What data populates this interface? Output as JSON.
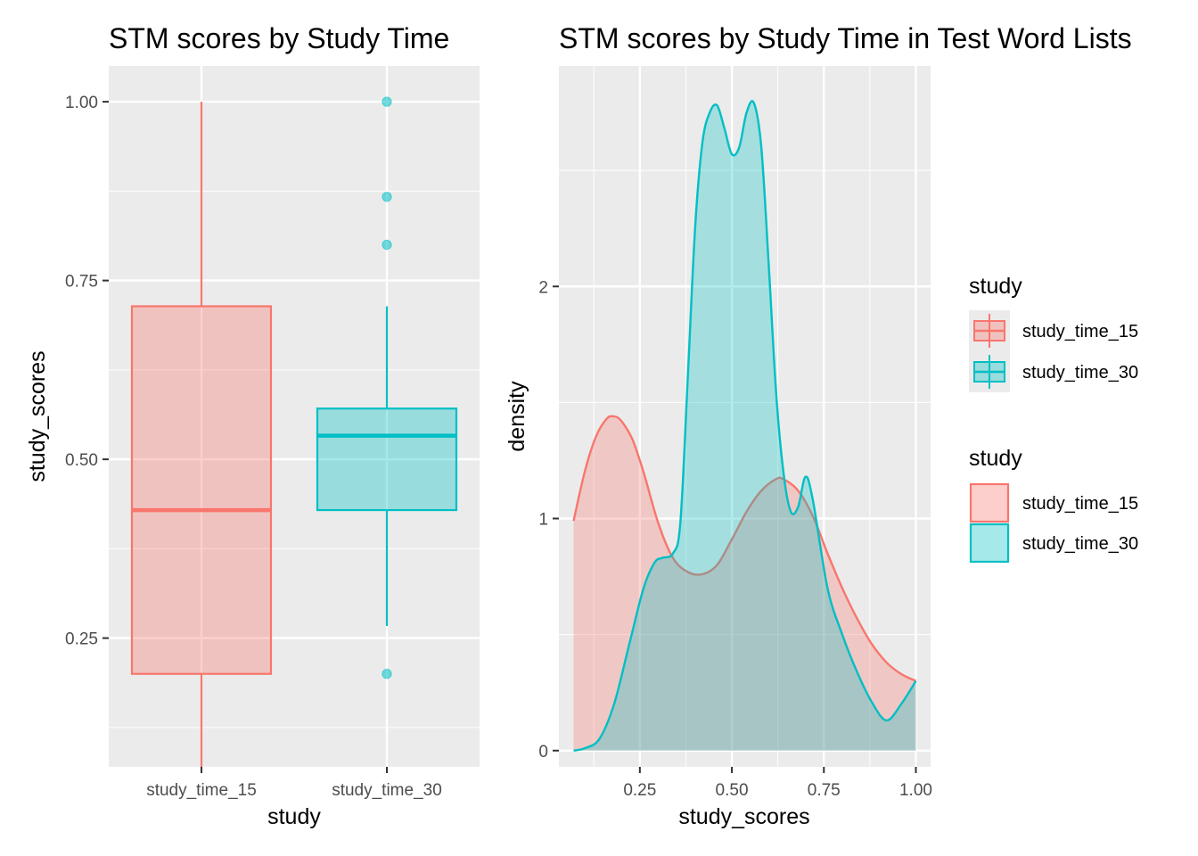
{
  "chart_data": [
    {
      "type": "box",
      "title": "STM scores by Study Time",
      "xlabel": "study",
      "ylabel": "study_scores",
      "ylim": [
        0.07,
        1.05
      ],
      "yticks": [
        0.25,
        0.5,
        0.75,
        1.0
      ],
      "ytick_labels": [
        "0.25",
        "0.50",
        "0.75",
        "1.00"
      ],
      "grid": true,
      "categories": [
        "study_time_15",
        "study_time_30"
      ],
      "boxes": [
        {
          "name": "study_time_15",
          "color": "#F8766D",
          "min": 0.07,
          "q1": 0.2,
          "median": 0.429,
          "q3": 0.714,
          "max": 1.0,
          "outliers": []
        },
        {
          "name": "study_time_30",
          "color": "#00BFC4",
          "min": 0.267,
          "q1": 0.429,
          "median": 0.533,
          "q3": 0.571,
          "max": 0.714,
          "outliers": [
            1.0,
            0.867,
            0.8,
            0.2
          ]
        }
      ]
    },
    {
      "type": "area",
      "title": "STM scores by Study Time in Test Word Lists",
      "xlabel": "study_scores",
      "ylabel": "density",
      "xlim": [
        0.03,
        1.04
      ],
      "ylim": [
        -0.07,
        2.95
      ],
      "xticks": [
        0.25,
        0.5,
        0.75,
        1.0
      ],
      "xtick_labels": [
        "0.25",
        "0.50",
        "0.75",
        "1.00"
      ],
      "yticks": [
        0,
        1,
        2
      ],
      "ytick_labels": [
        "0",
        "1",
        "2"
      ],
      "grid": true,
      "series": [
        {
          "name": "study_time_15",
          "color": "#F8766D",
          "x": [
            0.07,
            0.1,
            0.13,
            0.16,
            0.18,
            0.2,
            0.23,
            0.26,
            0.3,
            0.34,
            0.38,
            0.42,
            0.46,
            0.5,
            0.54,
            0.58,
            0.62,
            0.64,
            0.68,
            0.72,
            0.76,
            0.8,
            0.84,
            0.88,
            0.92,
            0.96,
            1.0
          ],
          "values": [
            0.99,
            1.2,
            1.35,
            1.43,
            1.44,
            1.42,
            1.34,
            1.2,
            0.98,
            0.83,
            0.77,
            0.76,
            0.8,
            0.91,
            1.03,
            1.12,
            1.17,
            1.17,
            1.12,
            1.01,
            0.85,
            0.7,
            0.57,
            0.46,
            0.38,
            0.33,
            0.3
          ]
        },
        {
          "name": "study_time_30",
          "color": "#00BFC4",
          "x": [
            0.07,
            0.1,
            0.14,
            0.18,
            0.22,
            0.26,
            0.29,
            0.31,
            0.34,
            0.36,
            0.38,
            0.4,
            0.42,
            0.44,
            0.46,
            0.48,
            0.5,
            0.52,
            0.54,
            0.56,
            0.58,
            0.6,
            0.62,
            0.64,
            0.66,
            0.68,
            0.7,
            0.72,
            0.76,
            0.8,
            0.84,
            0.88,
            0.92,
            0.96,
            1.0
          ],
          "values": [
            0.0,
            0.01,
            0.05,
            0.2,
            0.45,
            0.7,
            0.81,
            0.83,
            0.85,
            0.98,
            1.6,
            2.25,
            2.62,
            2.75,
            2.78,
            2.68,
            2.57,
            2.6,
            2.75,
            2.79,
            2.6,
            2.1,
            1.55,
            1.2,
            1.03,
            1.05,
            1.18,
            1.08,
            0.7,
            0.5,
            0.34,
            0.21,
            0.13,
            0.2,
            0.3
          ]
        }
      ]
    }
  ],
  "legends": [
    {
      "title": "study",
      "kind": "box",
      "items": [
        {
          "label": "study_time_15",
          "color": "#F8766D"
        },
        {
          "label": "study_time_30",
          "color": "#00BFC4"
        }
      ]
    },
    {
      "title": "study",
      "kind": "fill",
      "items": [
        {
          "label": "study_time_15",
          "color": "#F8766D"
        },
        {
          "label": "study_time_30",
          "color": "#00BFC4"
        }
      ]
    }
  ]
}
